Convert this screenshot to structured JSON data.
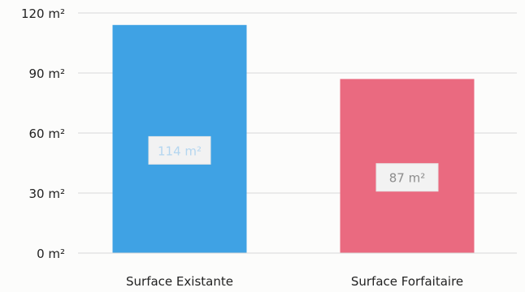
{
  "chart_data": {
    "type": "bar",
    "categories": [
      "Surface Existante",
      "Surface Forfaitaire"
    ],
    "values": [
      114,
      87
    ],
    "data_labels": [
      "114 m²",
      "87 m²"
    ],
    "ylim": [
      0,
      120
    ],
    "yticks": [
      0,
      30,
      60,
      90,
      120
    ],
    "ytick_labels": [
      "0 m²",
      "30 m²",
      "60 m²",
      "90 m²",
      "120 m²"
    ],
    "title": "",
    "xlabel": "",
    "ylabel": "",
    "grid": true,
    "legend": "none",
    "colors": {
      "bars": [
        "#3fa2e4",
        "#ea6a80"
      ],
      "grid": "#d8d8d8",
      "background": "#fcfcfb",
      "label_box": "#f2f2f2",
      "label_text": [
        "#b4d6f0",
        "#8c8c8c"
      ]
    }
  }
}
